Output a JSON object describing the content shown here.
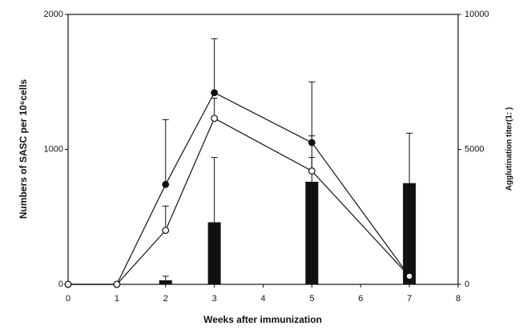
{
  "chart_data": {
    "type": "bar-line",
    "xlabel": "Weeks after immunization",
    "ylabel": "Numbers of SASC per 10⁶cells",
    "y2label": "Agglutination titer(1:  )",
    "xlim": [
      0,
      8
    ],
    "xticks": [
      0,
      1,
      2,
      3,
      4,
      5,
      6,
      7,
      8
    ],
    "ylim": [
      0,
      2000
    ],
    "yticks": [
      0,
      1000,
      2000
    ],
    "y2lim": [
      0,
      10000
    ],
    "y2ticks": [
      0,
      5000,
      10000
    ],
    "series": [
      {
        "type": "bar",
        "axis": "y2",
        "color": "#111111",
        "x": [
          2,
          3,
          5,
          7
        ],
        "values": [
          150,
          2300,
          3800,
          3750
        ],
        "errors": [
          150,
          2400,
          1700,
          1850
        ]
      },
      {
        "type": "line",
        "marker": "filled",
        "color": "#111111",
        "x": [
          0,
          1,
          2,
          3,
          5,
          7
        ],
        "values": [
          0,
          0,
          740,
          1420,
          1050,
          60
        ],
        "errors": [
          0,
          0,
          480,
          400,
          450,
          0
        ]
      },
      {
        "type": "line",
        "marker": "open",
        "color": "#111111",
        "x": [
          0,
          1,
          2,
          3,
          5,
          7
        ],
        "values": [
          0,
          0,
          400,
          1230,
          840,
          60
        ],
        "errors": [
          0,
          0,
          180,
          150,
          100,
          0
        ]
      }
    ]
  }
}
